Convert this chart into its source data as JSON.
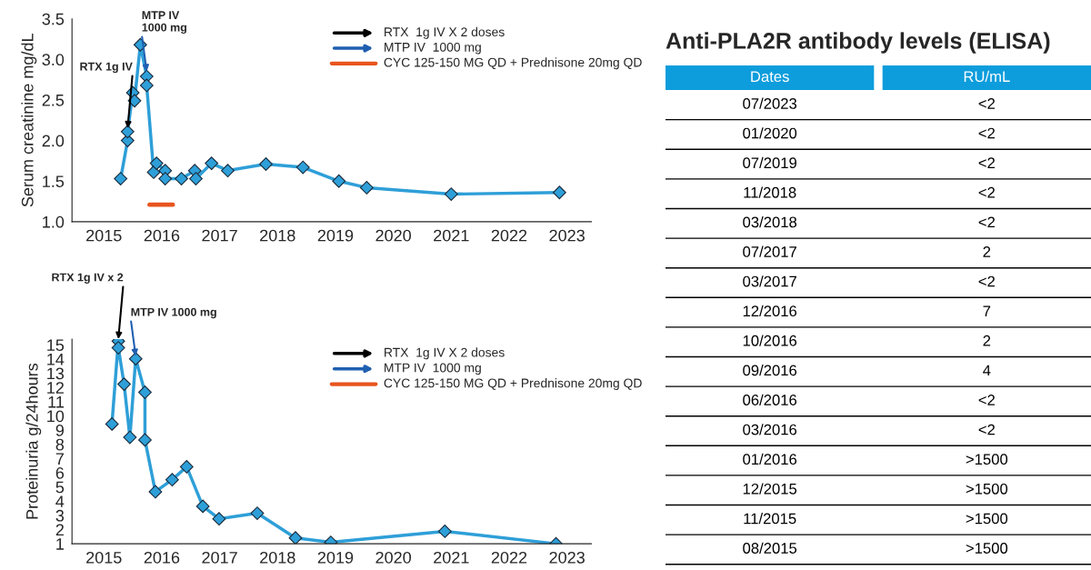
{
  "chart_data": [
    {
      "type": "line",
      "ylabel": "Serum creatinine mg/dL",
      "xlim": [
        2014.45,
        2023.42
      ],
      "xticks": [
        2015,
        2016,
        2017,
        2018,
        2019,
        2020,
        2021,
        2022,
        2023
      ],
      "ylim": [
        1.0,
        3.5
      ],
      "yticks": [
        {
          "value": 1.0,
          "label": "1.0"
        },
        {
          "value": 1.5,
          "label": "1.5"
        },
        {
          "value": 2.0,
          "label": "2.0"
        },
        {
          "value": 2.5,
          "label": "2.5"
        },
        {
          "value": 3.0,
          "label": "3.0"
        },
        {
          "value": 3.5,
          "label": "3.5"
        }
      ],
      "marker": "diamond",
      "grid": false,
      "legend": "top right",
      "series": [
        {
          "color": "#2e9fd8",
          "x": [
            2015.29,
            2015.41,
            2015.41,
            2015.5,
            2015.53,
            2015.63,
            2015.74,
            2015.74,
            2015.86,
            2015.91,
            2016.06,
            2016.06,
            2016.34,
            2016.57,
            2016.59,
            2016.86,
            2017.14,
            2017.8,
            2018.44,
            2019.06,
            2019.54,
            2021.0,
            2022.87
          ],
          "values": [
            1.53,
            2.0,
            2.11,
            2.59,
            2.49,
            3.18,
            2.79,
            2.68,
            1.61,
            1.72,
            1.63,
            1.53,
            1.53,
            1.63,
            1.53,
            1.72,
            1.63,
            1.71,
            1.67,
            1.5,
            1.42,
            1.34,
            1.36
          ]
        },
        {
          "type": "other",
          "name": "RTX  1g IV X 2 doses",
          "color": "#000000"
        },
        {
          "type": "other",
          "name": "MTP IV  1000 mg",
          "color": "#1f5fb0"
        },
        {
          "type": "line",
          "name": "CYC 125-150 MG QD + Prednisone 20mg QD",
          "color": "#e8541e",
          "marker": "none",
          "x": [
            2015.79,
            2016.19
          ],
          "values": [
            1.21,
            1.21
          ]
        }
      ],
      "annotations": [
        {
          "text": "RTX 1g IV",
          "x": 2015.41,
          "y": 2.15
        },
        {
          "text": "MTP IV\n1000 mg",
          "x": 2015.74,
          "y": 2.85
        }
      ]
    },
    {
      "type": "line",
      "ylabel": "Proteinuria g/24hours",
      "xlim": [
        2014.45,
        2023.42
      ],
      "xticks": [
        2015,
        2016,
        2017,
        2018,
        2019,
        2020,
        2021,
        2022,
        2023
      ],
      "ylim": [
        1,
        15.4
      ],
      "yticks": [
        1,
        2,
        3,
        4,
        5,
        6,
        7,
        8,
        9,
        10,
        11,
        12,
        13,
        14,
        15
      ],
      "marker": "diamond",
      "grid": false,
      "legend": "top right",
      "series": [
        {
          "color": "#2e9fd8",
          "x": [
            2015.14,
            2015.25,
            2015.25,
            2015.35,
            2015.45,
            2015.55,
            2015.71,
            2015.71,
            2015.89,
            2016.18,
            2016.43,
            2016.71,
            2016.99,
            2017.65,
            2018.31,
            2018.92,
            2020.89,
            2022.81
          ],
          "values": [
            9.43,
            15.26,
            14.79,
            12.23,
            8.49,
            14.02,
            11.66,
            8.31,
            4.66,
            5.51,
            6.42,
            3.64,
            2.76,
            3.15,
            1.41,
            1.1,
            1.88,
            1.0
          ]
        },
        {
          "type": "other",
          "name": "RTX  1g IV X 2 doses",
          "color": "#000000"
        },
        {
          "type": "other",
          "name": "MTP IV  1000 mg",
          "color": "#1f5fb0"
        },
        {
          "type": "line",
          "name": "CYC 125-150 MG QD + Prednisone 20mg QD",
          "color": "#e8541e"
        }
      ],
      "annotations": [
        {
          "text": "RTX 1g IV x 2",
          "x": 2015.25,
          "y": 15.4
        },
        {
          "text": "MTP IV 1000 mg",
          "x": 2015.55,
          "y": 14.2
        }
      ]
    },
    {
      "type": "other",
      "title": "Anti-PLA2R antibody levels (ELISA)",
      "categories": [
        "Dates",
        "RU/mL"
      ],
      "colors": [
        "#0e9ddc",
        "#0e9ddc"
      ],
      "cell_labels": [
        [
          "07/2023",
          "<2"
        ],
        [
          "01/2020",
          "<2"
        ],
        [
          "07/2019",
          "<2"
        ],
        [
          "11/2018",
          "<2"
        ],
        [
          "03/2018",
          "<2"
        ],
        [
          "07/2017",
          "2"
        ],
        [
          "03/2017",
          "<2"
        ],
        [
          "12/2016",
          "7"
        ],
        [
          "10/2016",
          "2"
        ],
        [
          "09/2016",
          "4"
        ],
        [
          "06/2016",
          "<2"
        ],
        [
          "03/2016",
          "<2"
        ],
        [
          "01/2016",
          ">1500"
        ],
        [
          "12/2015",
          ">1500"
        ],
        [
          "11/2015",
          ">1500"
        ],
        [
          "08/2015",
          ">1500"
        ]
      ]
    }
  ]
}
